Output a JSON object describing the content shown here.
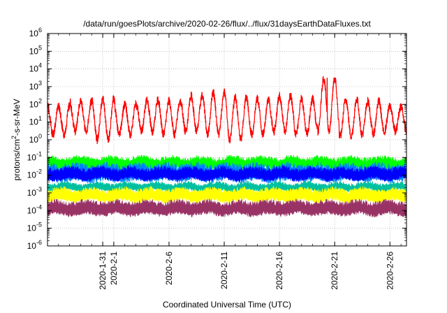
{
  "chart_data": {
    "type": "line",
    "title": "/data/run/goesPlots/archive/2020-02-26/flux/../flux/31daysEarthDataFluxes.txt",
    "xlabel": "Coordinated Universal Time (UTC)",
    "ylabel": {
      "base": "protons/cm",
      "sup": "2",
      "rest": "-s-sr-MeV"
    },
    "yscale": "log",
    "ylim": [
      1e-06,
      1000000.0
    ],
    "xlim": [
      "2020-01-26",
      "2020-02-27 12:00"
    ],
    "grid": true,
    "ytick_labels": [
      {
        "exp": "-6",
        "value": 1e-06
      },
      {
        "exp": "-5",
        "value": 1e-05
      },
      {
        "exp": "-4",
        "value": 0.0001
      },
      {
        "exp": "-3",
        "value": 0.001
      },
      {
        "exp": "-2",
        "value": 0.01
      },
      {
        "exp": "-1",
        "value": 0.1
      },
      {
        "exp": "0",
        "value": 1
      },
      {
        "exp": "1",
        "value": 10
      },
      {
        "exp": "2",
        "value": 100
      },
      {
        "exp": "3",
        "value": 1000
      },
      {
        "exp": "4",
        "value": 10000
      },
      {
        "exp": "5",
        "value": 100000
      },
      {
        "exp": "6",
        "value": 1000000
      }
    ],
    "xtick_labels": [
      {
        "label": "2020-1-31",
        "day": 5
      },
      {
        "label": "2020-2-1",
        "day": 6
      },
      {
        "label": "2020-2-6",
        "day": 11
      },
      {
        "label": "2020-2-11",
        "day": 16
      },
      {
        "label": "2020-2-16",
        "day": 21
      },
      {
        "label": "2020-2-21",
        "day": 26
      },
      {
        "label": "2020-2-26",
        "day": 31
      }
    ],
    "series": [
      {
        "color": "#ff0000",
        "low": [
          2,
          3,
          1,
          2,
          3,
          2,
          3,
          2,
          1,
          2,
          3,
          2,
          3,
          1.5,
          2,
          3
        ],
        "high": [
          80,
          150,
          200,
          100,
          180,
          150,
          300,
          500,
          250,
          200,
          300,
          200,
          3000,
          200,
          150,
          80
        ]
      },
      {
        "color": "#00ff00",
        "low": 0.02,
        "high": 0.12
      },
      {
        "color": "#0080ff",
        "low": 0.004,
        "high": 0.05
      },
      {
        "color": "#0000ff",
        "low": 0.005,
        "high": 0.03
      },
      {
        "color": "#00c0a0",
        "low": 0.0012,
        "high": 0.004
      },
      {
        "color": "#ffff00",
        "low": 0.0003,
        "high": 0.002
      },
      {
        "color": "#993366",
        "low": 5e-05,
        "high": 0.0004
      }
    ]
  }
}
